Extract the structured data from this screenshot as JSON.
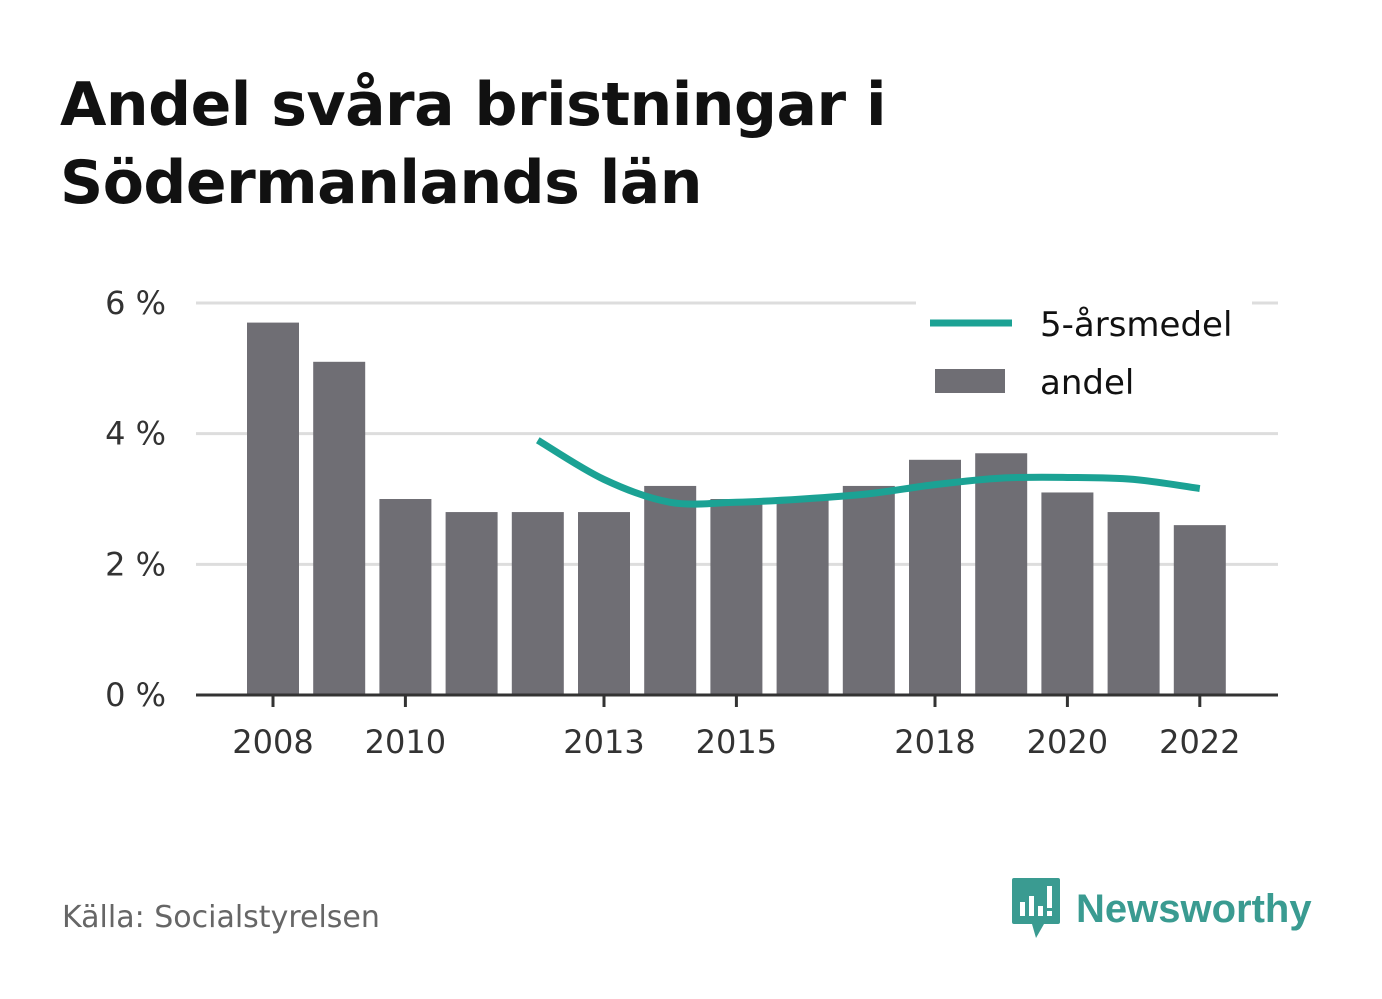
{
  "title": "Andel svåra bristningar i Södermanlands län",
  "source": "Källa: Socialstyrelsen",
  "brand": "Newsworthy",
  "colors": {
    "bar": "#6f6e74",
    "line": "#1ba294",
    "grid": "#dddddd",
    "axis": "#333333",
    "brand": "#3a9b91"
  },
  "chart_data": {
    "type": "bar",
    "x": [
      2008,
      2009,
      2010,
      2011,
      2012,
      2013,
      2014,
      2015,
      2016,
      2017,
      2018,
      2019,
      2020,
      2021,
      2022
    ],
    "x_tick_labels": [
      "2008",
      "2010",
      "2013",
      "2015",
      "2018",
      "2020",
      "2022"
    ],
    "y_ticks": [
      0,
      2,
      4,
      6
    ],
    "y_tick_labels": [
      "0 %",
      "2 %",
      "4 %",
      "6 %"
    ],
    "ylim": [
      0,
      6
    ],
    "grid": true,
    "legend_position": "top-right",
    "series": [
      {
        "name": "andel",
        "type": "bar",
        "values": [
          5.7,
          5.1,
          3.0,
          2.8,
          2.8,
          2.8,
          3.2,
          3.0,
          3.0,
          3.2,
          3.6,
          3.7,
          3.1,
          2.8,
          2.6
        ]
      },
      {
        "name": "5-årsmedel",
        "type": "line",
        "values": [
          null,
          null,
          null,
          null,
          3.9,
          3.3,
          2.95,
          2.95,
          3.0,
          3.08,
          3.22,
          3.32,
          3.33,
          3.3,
          3.16
        ]
      }
    ]
  }
}
